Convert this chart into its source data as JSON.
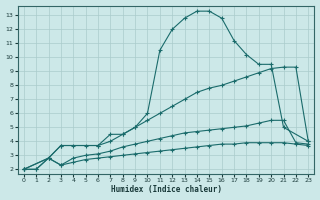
{
  "title": "",
  "xlabel": "Humidex (Indice chaleur)",
  "background_color": "#cce8e8",
  "grid_color": "#aacccc",
  "line_color": "#1a6b6b",
  "xlim": [
    -0.5,
    23.5
  ],
  "ylim": [
    1.7,
    13.7
  ],
  "xticks": [
    0,
    1,
    2,
    3,
    4,
    5,
    6,
    7,
    8,
    9,
    10,
    11,
    12,
    13,
    14,
    15,
    16,
    17,
    18,
    19,
    20,
    21,
    22,
    23
  ],
  "yticks": [
    2,
    3,
    4,
    5,
    6,
    7,
    8,
    9,
    10,
    11,
    12,
    13
  ],
  "series": [
    {
      "x": [
        0,
        2,
        3,
        6,
        7,
        8,
        9,
        10,
        11,
        12,
        13,
        14,
        15,
        16,
        17,
        18,
        19,
        20,
        21,
        23
      ],
      "y": [
        2.0,
        2.8,
        3.7,
        3.7,
        4.5,
        4.5,
        5.0,
        6.0,
        10.5,
        12.0,
        12.8,
        13.3,
        13.3,
        12.8,
        11.2,
        10.2,
        9.5,
        9.5,
        5.0,
        4.0
      ]
    },
    {
      "x": [
        0,
        2,
        3,
        4,
        5,
        6,
        7,
        8,
        9,
        10,
        11,
        12,
        13,
        14,
        15,
        16,
        17,
        18,
        19,
        20,
        21,
        22,
        23
      ],
      "y": [
        2.0,
        2.8,
        3.7,
        3.7,
        3.7,
        3.7,
        4.0,
        4.5,
        5.0,
        5.5,
        6.0,
        6.5,
        7.0,
        7.5,
        7.8,
        8.0,
        8.3,
        8.6,
        8.9,
        9.2,
        9.3,
        9.3,
        4.0
      ]
    },
    {
      "x": [
        0,
        1,
        2,
        3,
        4,
        5,
        6,
        7,
        8,
        9,
        10,
        11,
        12,
        13,
        14,
        15,
        16,
        17,
        18,
        19,
        20,
        21,
        22,
        23
      ],
      "y": [
        2.0,
        2.0,
        2.8,
        2.3,
        2.8,
        3.0,
        3.1,
        3.3,
        3.6,
        3.8,
        4.0,
        4.2,
        4.4,
        4.6,
        4.7,
        4.8,
        4.9,
        5.0,
        5.1,
        5.3,
        5.5,
        5.5,
        3.9,
        3.8
      ]
    },
    {
      "x": [
        0,
        1,
        2,
        3,
        4,
        5,
        6,
        7,
        8,
        9,
        10,
        11,
        12,
        13,
        14,
        15,
        16,
        17,
        18,
        19,
        20,
        21,
        22,
        23
      ],
      "y": [
        2.0,
        2.0,
        2.8,
        2.3,
        2.5,
        2.7,
        2.8,
        2.9,
        3.0,
        3.1,
        3.2,
        3.3,
        3.4,
        3.5,
        3.6,
        3.7,
        3.8,
        3.8,
        3.9,
        3.9,
        3.9,
        3.9,
        3.8,
        3.7
      ]
    }
  ]
}
